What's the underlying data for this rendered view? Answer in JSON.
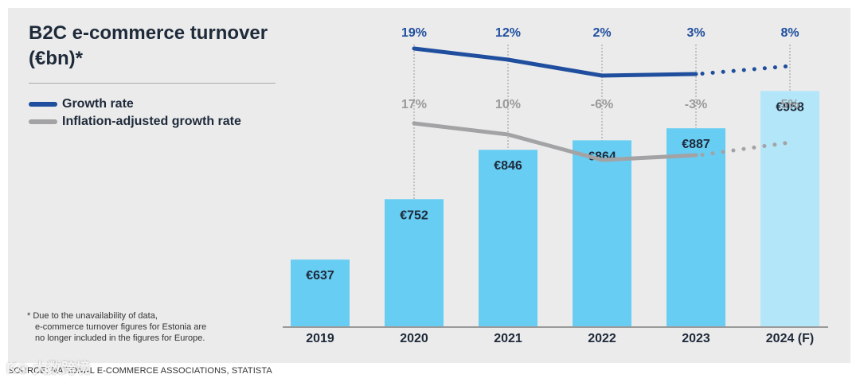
{
  "title": "B2C e-commerce turnover (€bn)*",
  "legend": [
    {
      "label": "Growth rate",
      "color": "#1f4e9e"
    },
    {
      "label": "Inflation-adjusted growth rate",
      "color": "#a3a3a5"
    }
  ],
  "footnote": [
    "* Due to the unavailability of data,",
    "e-commerce turnover figures for Estonia are",
    "no longer included in the figures for Europe."
  ],
  "source": "SOURCE: NATIONAL E-COMMERCE ASSOCIATIONS, STATISTA",
  "watermark": "K⊙ 大数跨境",
  "chart_data": {
    "type": "bar",
    "categories": [
      "2019",
      "2020",
      "2021",
      "2022",
      "2023",
      "2024 (F)"
    ],
    "values": [
      637,
      752,
      846,
      864,
      887,
      958
    ],
    "value_labels": [
      "€637",
      "€752",
      "€846",
      "€864",
      "€887",
      "€958"
    ],
    "forecast_index": 5,
    "bar_color": "#68cdf3",
    "forecast_bar_color": "#b3e6f8",
    "series": [
      {
        "name": "Growth rate",
        "values": [
          null,
          19,
          12,
          2,
          3,
          8
        ],
        "labels": [
          "",
          "19%",
          "12%",
          "2%",
          "3%",
          "8%"
        ],
        "color": "#1f4e9e"
      },
      {
        "name": "Inflation-adjusted growth rate",
        "values": [
          null,
          17,
          10,
          -6,
          -3,
          5
        ],
        "labels": [
          "",
          "17%",
          "10%",
          "-6%",
          "-3%",
          "5%"
        ],
        "color": "#a3a3a5"
      }
    ]
  }
}
